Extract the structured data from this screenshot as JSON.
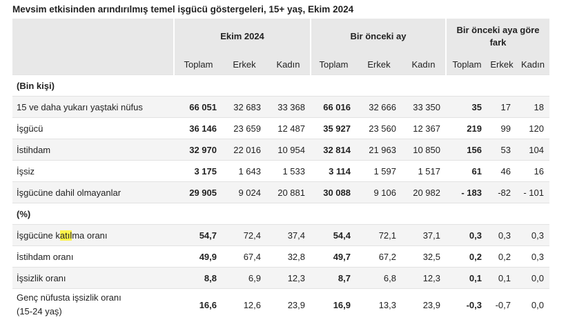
{
  "title": "Mevsim etkisinden arındırılmış temel işgücü göstergeleri, 15+ yaş, Ekim 2024",
  "headers": {
    "group1": "Ekim 2024",
    "group2": "Bir önceki ay",
    "group3": "Bir önceki aya göre fark",
    "sub": [
      "Toplam",
      "Erkek",
      "Kadın",
      "Toplam",
      "Erkek",
      "Kadın",
      "Toplam",
      "Erkek",
      "Kadın"
    ]
  },
  "sections": {
    "thousands": "(Bin kişi)",
    "percent": "(%)"
  },
  "rows": [
    {
      "label": "15 ve daha yukarı yaştaki nüfus",
      "values": [
        "66 051",
        "32 683",
        "33 368",
        "66 016",
        "32 666",
        "33 350",
        "35",
        "17",
        "18"
      ]
    },
    {
      "label": "İşgücü",
      "values": [
        "36 146",
        "23 659",
        "12 487",
        "35 927",
        "23 560",
        "12 367",
        "219",
        "99",
        "120"
      ]
    },
    {
      "label": "İstihdam",
      "values": [
        "32 970",
        "22 016",
        "10 954",
        "32 814",
        "21 963",
        "10 850",
        "156",
        "53",
        "104"
      ]
    },
    {
      "label": "İşsiz",
      "values": [
        "3 175",
        "1 643",
        "1 533",
        "3 114",
        "1 597",
        "1 517",
        "61",
        "46",
        "16"
      ]
    },
    {
      "label": "İşgücüne dahil olmayanlar",
      "values": [
        "29 905",
        "9 024",
        "20 881",
        "30 088",
        "9 106",
        "20 982",
        "- 183",
        "-82",
        "- 101"
      ]
    },
    {
      "label_pre": "İşgücüne k",
      "label_hl": "atıl",
      "label_post": "ma oranı",
      "values": [
        "54,7",
        "72,4",
        "37,4",
        "54,4",
        "72,1",
        "37,1",
        "0,3",
        "0,3",
        "0,3"
      ]
    },
    {
      "label": "İstihdam oranı",
      "values": [
        "49,9",
        "67,4",
        "32,8",
        "49,7",
        "67,2",
        "32,5",
        "0,2",
        "0,2",
        "0,3"
      ]
    },
    {
      "label": "İşsizlik oranı",
      "values": [
        "8,8",
        "6,9",
        "12,3",
        "8,7",
        "6,8",
        "12,3",
        "0,1",
        "0,1",
        "0,0"
      ]
    },
    {
      "label_line1": "Genç nüfusta işsizlik oranı",
      "label_line2": "(15-24 yaş)",
      "values": [
        "16,6",
        "12,6",
        "23,9",
        "16,9",
        "13,3",
        "23,9",
        "-0,3",
        "-0,7",
        "0,0"
      ]
    }
  ]
}
